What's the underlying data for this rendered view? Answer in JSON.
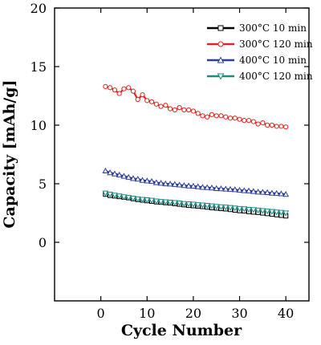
{
  "chart_data": {
    "type": "line",
    "title": "",
    "xlabel": "Cycle Number",
    "ylabel": "Capacity [mAh/g]",
    "xlim": [
      -10,
      45
    ],
    "ylim": [
      -5,
      20
    ],
    "xticks": [
      0,
      10,
      20,
      30,
      40
    ],
    "yticks": [
      0,
      5,
      10,
      15,
      20
    ],
    "grid": false,
    "legend_position": "top-right",
    "x": [
      1,
      2,
      3,
      4,
      5,
      6,
      7,
      8,
      9,
      10,
      11,
      12,
      13,
      14,
      15,
      16,
      17,
      18,
      19,
      20,
      21,
      22,
      23,
      24,
      25,
      26,
      27,
      28,
      29,
      30,
      31,
      32,
      33,
      34,
      35,
      36,
      37,
      38,
      39,
      40
    ],
    "series": [
      {
        "name": "300°C 10 min",
        "color": "#000000",
        "marker": "square",
        "values": [
          4.1,
          4.0,
          3.95,
          3.9,
          3.85,
          3.8,
          3.72,
          3.65,
          3.6,
          3.55,
          3.5,
          3.45,
          3.42,
          3.38,
          3.35,
          3.3,
          3.25,
          3.2,
          3.15,
          3.12,
          3.08,
          3.05,
          3.0,
          2.95,
          2.92,
          2.88,
          2.85,
          2.8,
          2.75,
          2.7,
          2.68,
          2.62,
          2.58,
          2.55,
          2.5,
          2.45,
          2.4,
          2.35,
          2.3,
          2.25
        ]
      },
      {
        "name": "300°C 120 min",
        "color": "#e4231b",
        "marker": "circle",
        "values": [
          13.3,
          13.2,
          13.0,
          12.7,
          13.1,
          13.2,
          12.9,
          12.2,
          12.6,
          12.1,
          12.0,
          11.8,
          11.6,
          11.7,
          11.4,
          11.3,
          11.5,
          11.3,
          11.3,
          11.2,
          11.0,
          10.8,
          10.7,
          10.9,
          10.8,
          10.8,
          10.7,
          10.6,
          10.6,
          10.5,
          10.4,
          10.4,
          10.3,
          10.1,
          10.2,
          10.0,
          10.0,
          9.9,
          9.9,
          9.85
        ]
      },
      {
        "name": "400°C 10 min",
        "color": "#2a3f97",
        "marker": "triangle-up",
        "values": [
          6.1,
          5.95,
          5.85,
          5.75,
          5.65,
          5.55,
          5.45,
          5.4,
          5.3,
          5.25,
          5.2,
          5.1,
          5.05,
          5.0,
          4.98,
          4.95,
          4.9,
          4.85,
          4.82,
          4.8,
          4.75,
          4.7,
          4.68,
          4.65,
          4.6,
          4.58,
          4.55,
          4.52,
          4.5,
          4.45,
          4.42,
          4.4,
          4.35,
          4.3,
          4.28,
          4.25,
          4.2,
          4.18,
          4.15,
          4.1
        ]
      },
      {
        "name": "400°C 120 min",
        "color": "#1f8a80",
        "marker": "triangle-down",
        "values": [
          4.2,
          4.1,
          4.02,
          3.95,
          3.88,
          3.82,
          3.76,
          3.7,
          3.66,
          3.62,
          3.58,
          3.52,
          3.48,
          3.45,
          3.42,
          3.38,
          3.35,
          3.3,
          3.28,
          3.25,
          3.2,
          3.18,
          3.14,
          3.1,
          3.06,
          3.02,
          3.0,
          2.96,
          2.92,
          2.88,
          2.85,
          2.8,
          2.78,
          2.74,
          2.7,
          2.66,
          2.62,
          2.58,
          2.55,
          2.5
        ]
      }
    ]
  }
}
